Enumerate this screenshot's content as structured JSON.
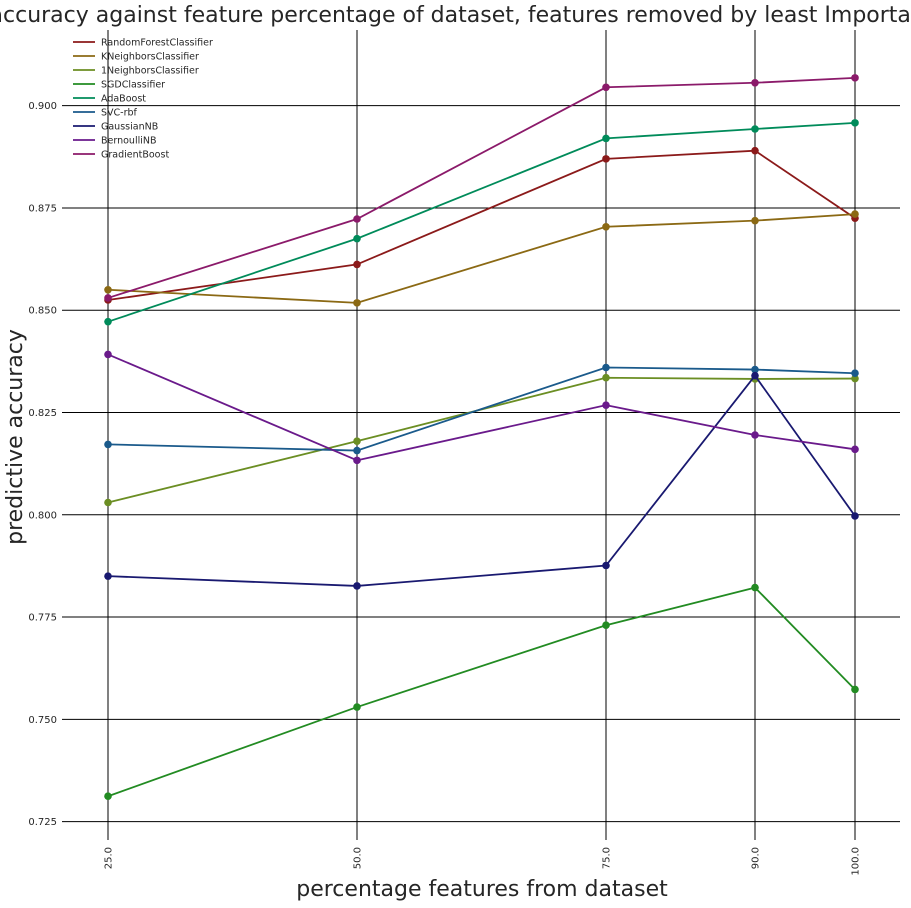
{
  "chart_data": {
    "type": "line",
    "title": "accuracy against feature percentage of dataset, features removed by least Importance",
    "xlabel": "percentage features from dataset",
    "ylabel": "predictive accuracy",
    "x": [
      25.0,
      50.0,
      75.0,
      90.0,
      100.0
    ],
    "x_tick_labels": [
      "25.0",
      "50.0",
      "75.0",
      "90.0",
      "100.0"
    ],
    "y_ticks": [
      0.725,
      0.75,
      0.775,
      0.8,
      0.825,
      0.85,
      0.875,
      0.9
    ],
    "y_tick_labels": [
      "0.725",
      "0.750",
      "0.775",
      "0.800",
      "0.825",
      "0.850",
      "0.875",
      "0.900"
    ],
    "ylim": [
      0.7205,
      0.9185
    ],
    "grid": true,
    "legend_position": "top-left",
    "series": [
      {
        "name": "RandomForestClassifier",
        "color": "#8B1A1A",
        "values": [
          0.8525,
          0.8612,
          0.887,
          0.889,
          0.8725
        ]
      },
      {
        "name": "KNeighborsClassifier",
        "color": "#8B6914",
        "values": [
          0.855,
          0.8518,
          0.8704,
          0.8719,
          0.8735
        ]
      },
      {
        "name": "1NeighborsClassifier",
        "color": "#6B8E23",
        "values": [
          0.803,
          0.818,
          0.8335,
          0.8332,
          0.8333
        ]
      },
      {
        "name": "SGDClassifier",
        "color": "#228B22",
        "values": [
          0.7312,
          0.753,
          0.773,
          0.7822,
          0.7573
        ]
      },
      {
        "name": "AdaBoost",
        "color": "#008B5A",
        "values": [
          0.8472,
          0.8675,
          0.892,
          0.8943,
          0.8958
        ]
      },
      {
        "name": "SVC-rbf",
        "color": "#1A5A8B",
        "values": [
          0.8172,
          0.8157,
          0.836,
          0.8355,
          0.8346
        ]
      },
      {
        "name": "GaussianNB",
        "color": "#191970",
        "values": [
          0.785,
          0.7826,
          0.7876,
          0.834,
          0.7997
        ]
      },
      {
        "name": "BernoulliNB",
        "color": "#6A1A8B",
        "values": [
          0.8392,
          0.8133,
          0.8268,
          0.8195,
          0.816
        ]
      },
      {
        "name": "GradientBoost",
        "color": "#8B1A6A",
        "values": [
          0.853,
          0.8723,
          0.9045,
          0.9056,
          0.9068
        ]
      }
    ]
  }
}
